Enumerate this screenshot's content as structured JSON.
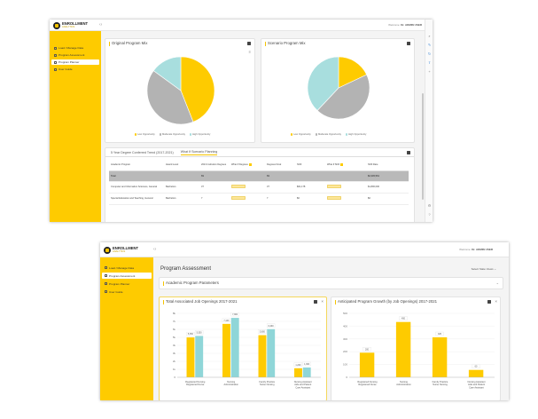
{
  "brand": {
    "name": "ENROLLMENT",
    "sub": "ANALYTICS"
  },
  "shot1": {
    "welcome_prefix": "Welcome:",
    "welcome_name": "Dr. ADMIN USER",
    "nav": [
      {
        "label": "Load / Manage Data",
        "active": false
      },
      {
        "label": "Program Assessment",
        "active": false
      },
      {
        "label": "Program Planner",
        "active": true
      },
      {
        "label": "User Guide",
        "active": false
      }
    ],
    "card_left_title": "Original Program Mix",
    "card_right_title": "Scenario Program Mix",
    "legend": [
      {
        "label": "Low Opportunity",
        "color": "#fecb00"
      },
      {
        "label": "Moderate Opportunity",
        "color": "#b3b3b3"
      },
      {
        "label": "High Opportunity",
        "color": "#a8dede"
      }
    ],
    "tabs": [
      "5 Year Degree Conferred Trend (2017-2021)",
      "What If Scenario Planning"
    ],
    "columns": [
      "Academic Program",
      "Award Level",
      "2021 Institution Degrees",
      "What If Degrees",
      "Degrees Final",
      "Shift",
      "What If Shift",
      "Shift Rate"
    ],
    "total_row": {
      "label": "Total",
      "degrees": "69",
      "final": "69",
      "rate": "$2,345,561"
    },
    "rows": [
      {
        "program": "Computer and Information Sciences, General",
        "award": "Bachelors",
        "degrees": "37",
        "final": "37",
        "shift": "$61,178",
        "rate": "$1,800,000"
      },
      {
        "program": "Special Education and Teaching, General",
        "award": "Bachelors",
        "degrees": "7",
        "final": "7",
        "shift": "$0",
        "rate": "$0"
      }
    ],
    "chart_data": [
      {
        "type": "pie",
        "title": "Original Program Mix",
        "categories": [
          "Low Opportunity",
          "Moderate Opportunity",
          "High Opportunity"
        ],
        "values": [
          44,
          41,
          15
        ],
        "colors": [
          "#fecb00",
          "#b3b3b3",
          "#a8dede"
        ]
      },
      {
        "type": "pie",
        "title": "Scenario Program Mix",
        "categories": [
          "Low Opportunity",
          "Moderate Opportunity",
          "High Opportunity"
        ],
        "values": [
          18,
          44,
          38
        ],
        "colors": [
          "#fecb00",
          "#b3b3b3",
          "#a8dede"
        ]
      }
    ]
  },
  "shot2": {
    "welcome_prefix": "Welcome:",
    "welcome_name": "Dr. ADMIN USER",
    "nav": [
      {
        "label": "Load / Manage Data",
        "active": false
      },
      {
        "label": "Program Assessment",
        "active": true
      },
      {
        "label": "Program Planner",
        "active": false
      },
      {
        "label": "User Guide",
        "active": false
      }
    ],
    "page_title": "Program Assessment",
    "select_label": "Select State Views",
    "param_title": "Academic Program Parameters",
    "chart1_title": "Total Associated Job Openings 2017-2021",
    "chart2_title": "Anticipated Program Growth (by Job Openings) 2017-2021",
    "categories_text": [
      "Registered Nursing/Registered Nurse",
      "Nursing Administration",
      "Family Practice Nurse/Nursing",
      "Nursing Assistant/Aide and Patient Care Assistant/Aide"
    ],
    "chart_data": [
      {
        "type": "bar",
        "title": "Total Associated Job Openings 2017-2021",
        "categories": [
          "Registered Nursing/Registered Nurse",
          "Nursing Administration",
          "Family Practice Nurse/Nursing",
          "Nursing Assistant/Aide and Patient Care Assistant/Aide"
        ],
        "series": [
          {
            "values": [
              5.3,
              7.1,
              5.6,
              1.2
            ],
            "color": "#fecb00"
          },
          {
            "values": [
              5.5,
              7.9,
              6.4,
              1.3
            ],
            "color": "#8fd6d8"
          }
        ],
        "labels": [
          [
            "5,350",
            "5,550"
          ],
          [
            "7,100",
            "7,900"
          ],
          [
            "5,600",
            "6,400"
          ],
          [
            "1,200",
            "1,300"
          ]
        ],
        "yticks": [
          "0",
          "1k",
          "2k",
          "3k",
          "4k",
          "5k",
          "6k",
          "7k",
          "8k"
        ],
        "ylim": [
          0,
          8.5
        ]
      },
      {
        "type": "bar",
        "title": "Anticipated Program Growth (by Job Openings) 2017-2021",
        "categories": [
          "Registered Nursing/Registered Nurse",
          "Nursing Administration",
          "Family Practice Nurse/Nursing",
          "Nursing Assistant/Aide and Patient Care Assistant/Aide"
        ],
        "series": [
          {
            "values": [
              200,
              450,
              325,
              60
            ],
            "color": "#fecb00"
          }
        ],
        "labels": [
          [
            "200"
          ],
          [
            "450"
          ],
          [
            "325"
          ],
          [
            "60"
          ]
        ],
        "yticks": [
          "0",
          "100",
          "200",
          "300",
          "400",
          "500"
        ],
        "ylim": [
          0,
          520
        ]
      }
    ]
  }
}
